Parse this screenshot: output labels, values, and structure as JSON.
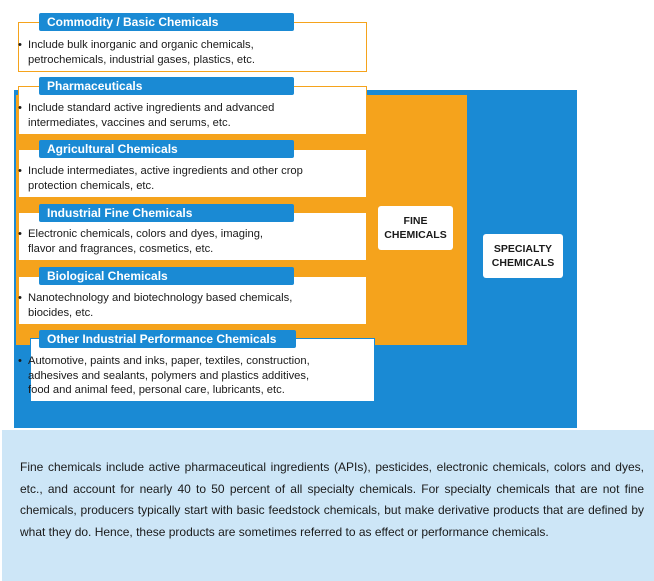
{
  "categories": [
    {
      "title": "Commodity / Basic Chemicals",
      "lines": [
        "Include bulk inorganic and organic chemicals,",
        "petrochemicals, industrial gases, plastics, etc."
      ]
    },
    {
      "title": "Pharmaceuticals",
      "lines": [
        "Include standard active ingredients and advanced",
        "intermediates, vaccines and serums, etc."
      ]
    },
    {
      "title": "Agricultural Chemicals",
      "lines": [
        "Include intermediates, active ingredients and other crop",
        "protection chemicals, etc."
      ]
    },
    {
      "title": "Industrial Fine Chemicals",
      "lines": [
        "Electronic chemicals, colors and dyes, imaging,",
        "flavor and fragrances, cosmetics, etc."
      ]
    },
    {
      "title": "Biological Chemicals",
      "lines": [
        "Nanotechnology and biotechnology based chemicals,",
        "biocides, etc."
      ]
    },
    {
      "title": "Other Industrial Performance Chemicals",
      "lines": [
        "Automotive, paints and inks, paper, textiles, construction,",
        "adhesives and sealants, polymers and plastics additives,",
        "food and animal feed, personal care, lubricants, etc."
      ]
    }
  ],
  "bullet": "•",
  "fine_label": [
    "FINE",
    "CHEMICALS"
  ],
  "specialty_label": [
    "SPECIALTY",
    "CHEMICALS"
  ],
  "footer_text": "Fine chemicals include active pharmaceutical ingredients (APIs), pesticides, electronic chemicals, colors and dyes, etc., and account for nearly 40 to 50 percent of all specialty chemicals. For specialty chemicals that are not fine chemicals, producers typically start with basic feedstock chemicals, but make derivative products that are defined by what they do. Hence, these products are sometimes referred to as effect or performance chemicals.",
  "colors": {
    "fine": "#f5a31c",
    "specialty": "#1a8ad4",
    "header": "#1a8ad4",
    "footer_bg": "#cde6f7"
  }
}
